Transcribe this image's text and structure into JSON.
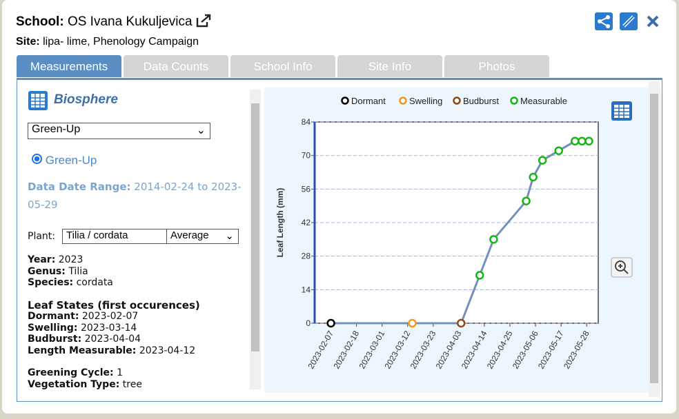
{
  "header": {
    "school_label": "School:",
    "school_name": "OS Ivana Kukuljevica",
    "site_label": "Site:",
    "site_name": "lipa- lime, Phenology Campaign"
  },
  "tabs": [
    "Measurements",
    "Data Counts",
    "School Info",
    "Site Info",
    "Photos"
  ],
  "panel": {
    "title": "Biosphere",
    "protocol_select": "Green-Up",
    "radio": "Green-Up",
    "range_label": "Data Date Range:",
    "range_value": "2014-02-24 to 2023-05-29",
    "plant_label": "Plant:",
    "plant_select": "Tilia / cordata",
    "stat_select": "Average",
    "info": [
      {
        "label": "Year:",
        "value": "2023"
      },
      {
        "label": "Genus:",
        "value": "Tilia"
      },
      {
        "label": "Species:",
        "value": "cordata"
      }
    ],
    "states_title": "Leaf States (first occurences)",
    "states": [
      {
        "label": "Dormant:",
        "value": "2023-02-07"
      },
      {
        "label": "Swelling:",
        "value": "2023-03-14"
      },
      {
        "label": "Budburst:",
        "value": "2023-04-04"
      },
      {
        "label": "Length Measurable:",
        "value": "2023-04-12"
      }
    ],
    "extra": [
      {
        "label": "Greening Cycle:",
        "value": "1"
      },
      {
        "label": "Vegetation Type:",
        "value": "tree"
      }
    ]
  },
  "chart_data": {
    "type": "line",
    "y_label": "Leaf Length (mm)",
    "xlim": [
      "2023-01-31",
      "2023-06-02"
    ],
    "xticks": [
      "2023-02-07",
      "2023-02-18",
      "2023-03-01",
      "2023-03-12",
      "2023-03-23",
      "2023-04-03",
      "2023-04-14",
      "2023-04-25",
      "2023-05-06",
      "2023-05-17",
      "2023-05-28"
    ],
    "ylim": [
      0,
      84
    ],
    "yticks": [
      0,
      14,
      28,
      42,
      56,
      70,
      84
    ],
    "grid": true,
    "line_color": "#7390b8",
    "series": [
      {
        "name": "Dormant",
        "color": "#000000",
        "x": [
          "2023-02-07"
        ],
        "values": [
          0
        ]
      },
      {
        "name": "Swelling",
        "color": "#f29a14",
        "x": [
          "2023-03-14"
        ],
        "values": [
          0
        ]
      },
      {
        "name": "Budburst",
        "color": "#8a4b14",
        "x": [
          "2023-04-04"
        ],
        "values": [
          0
        ]
      },
      {
        "name": "Measurable",
        "color": "#13b613",
        "x": [
          "2023-04-12",
          "2023-04-18",
          "2023-05-02",
          "2023-05-05",
          "2023-05-09",
          "2023-05-16",
          "2023-05-23",
          "2023-05-26",
          "2023-05-29"
        ],
        "values": [
          20,
          35,
          51,
          61,
          68,
          72,
          76,
          76,
          76
        ]
      }
    ]
  }
}
